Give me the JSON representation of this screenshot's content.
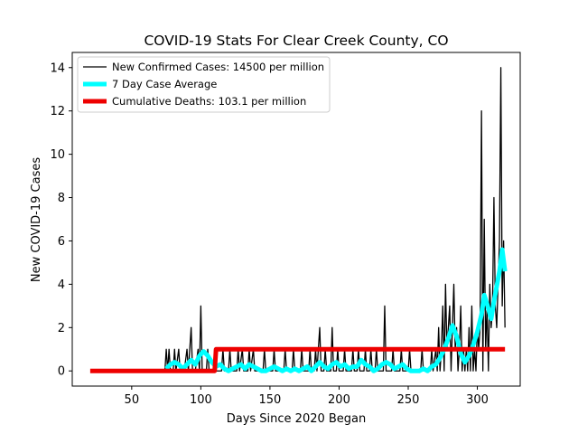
{
  "chart_data": {
    "type": "line",
    "title": "COVID-19 Stats For Clear Creek County, CO",
    "xlabel": "Days Since 2020 Began",
    "ylabel": "New COVID-19 Cases",
    "xlim": [
      7,
      331
    ],
    "ylim": [
      -0.7,
      14.7
    ],
    "xticks": [
      50,
      100,
      150,
      200,
      250,
      300
    ],
    "yticks": [
      0,
      2,
      4,
      6,
      8,
      10,
      12,
      14
    ],
    "grid": false,
    "legend_position": "top-left",
    "series": [
      {
        "name": "New Confirmed Cases: 14500 per million",
        "color": "#000000",
        "points": [
          [
            74,
            0
          ],
          [
            75,
            1
          ],
          [
            76,
            0
          ],
          [
            77,
            1
          ],
          [
            78,
            0
          ],
          [
            80,
            0
          ],
          [
            81,
            1
          ],
          [
            82,
            0
          ],
          [
            84,
            1
          ],
          [
            85,
            0
          ],
          [
            88,
            0
          ],
          [
            90,
            1
          ],
          [
            91,
            0
          ],
          [
            93,
            2
          ],
          [
            94,
            0
          ],
          [
            96,
            0
          ],
          [
            98,
            1
          ],
          [
            99,
            0
          ],
          [
            100,
            3
          ],
          [
            101,
            0
          ],
          [
            104,
            0
          ],
          [
            105,
            1
          ],
          [
            106,
            0
          ],
          [
            109,
            0
          ],
          [
            110,
            1
          ],
          [
            111,
            0
          ],
          [
            115,
            0
          ],
          [
            116,
            1
          ],
          [
            117,
            0
          ],
          [
            120,
            0
          ],
          [
            121,
            1
          ],
          [
            122,
            0
          ],
          [
            126,
            0
          ],
          [
            127,
            1
          ],
          [
            128,
            0
          ],
          [
            130,
            1
          ],
          [
            131,
            0
          ],
          [
            134,
            0
          ],
          [
            135,
            1
          ],
          [
            136,
            0
          ],
          [
            138,
            1
          ],
          [
            139,
            0
          ],
          [
            145,
            0
          ],
          [
            146,
            1
          ],
          [
            147,
            0
          ],
          [
            152,
            0
          ],
          [
            153,
            1
          ],
          [
            154,
            0
          ],
          [
            160,
            0
          ],
          [
            161,
            1
          ],
          [
            162,
            0
          ],
          [
            166,
            0
          ],
          [
            167,
            1
          ],
          [
            168,
            0
          ],
          [
            172,
            0
          ],
          [
            173,
            1
          ],
          [
            174,
            0
          ],
          [
            178,
            0
          ],
          [
            179,
            1
          ],
          [
            180,
            0
          ],
          [
            182,
            0
          ],
          [
            183,
            1
          ],
          [
            184,
            0
          ],
          [
            186,
            2
          ],
          [
            187,
            0
          ],
          [
            189,
            0
          ],
          [
            190,
            1
          ],
          [
            191,
            0
          ],
          [
            194,
            0
          ],
          [
            195,
            2
          ],
          [
            196,
            0
          ],
          [
            198,
            0
          ],
          [
            199,
            1
          ],
          [
            200,
            0
          ],
          [
            203,
            0
          ],
          [
            204,
            1
          ],
          [
            205,
            0
          ],
          [
            209,
            0
          ],
          [
            210,
            1
          ],
          [
            211,
            0
          ],
          [
            213,
            0
          ],
          [
            214,
            1
          ],
          [
            215,
            0
          ],
          [
            218,
            0
          ],
          [
            219,
            1
          ],
          [
            220,
            0
          ],
          [
            222,
            0
          ],
          [
            223,
            1
          ],
          [
            224,
            0
          ],
          [
            226,
            0
          ],
          [
            227,
            1
          ],
          [
            228,
            0
          ],
          [
            232,
            0
          ],
          [
            233,
            3
          ],
          [
            234,
            0
          ],
          [
            238,
            0
          ],
          [
            239,
            1
          ],
          [
            240,
            0
          ],
          [
            244,
            0
          ],
          [
            245,
            1
          ],
          [
            246,
            0
          ],
          [
            250,
            0
          ],
          [
            251,
            1
          ],
          [
            252,
            0
          ],
          [
            259,
            0
          ],
          [
            260,
            1
          ],
          [
            261,
            0
          ],
          [
            266,
            0
          ],
          [
            267,
            1
          ],
          [
            268,
            0
          ],
          [
            270,
            1
          ],
          [
            271,
            0
          ],
          [
            272,
            2
          ],
          [
            273,
            0
          ],
          [
            274,
            1
          ],
          [
            275,
            3
          ],
          [
            276,
            0
          ],
          [
            277,
            4
          ],
          [
            278,
            1
          ],
          [
            279,
            2
          ],
          [
            280,
            3
          ],
          [
            281,
            0
          ],
          [
            282,
            2
          ],
          [
            283,
            4
          ],
          [
            284,
            1
          ],
          [
            285,
            2
          ],
          [
            286,
            0
          ],
          [
            287,
            1
          ],
          [
            288,
            3
          ],
          [
            289,
            0
          ],
          [
            290,
            1
          ],
          [
            291,
            0
          ],
          [
            292,
            1
          ],
          [
            293,
            0
          ],
          [
            294,
            2
          ],
          [
            295,
            0
          ],
          [
            296,
            3
          ],
          [
            297,
            0
          ],
          [
            298,
            1
          ],
          [
            299,
            0
          ],
          [
            300,
            2
          ],
          [
            301,
            1
          ],
          [
            302,
            2
          ],
          [
            303,
            12
          ],
          [
            304,
            0
          ],
          [
            305,
            7
          ],
          [
            306,
            1
          ],
          [
            307,
            3
          ],
          [
            308,
            0
          ],
          [
            309,
            4
          ],
          [
            310,
            2
          ],
          [
            311,
            3
          ],
          [
            312,
            8
          ],
          [
            313,
            3
          ],
          [
            314,
            2
          ],
          [
            315,
            4
          ],
          [
            316,
            6
          ],
          [
            317,
            14
          ],
          [
            318,
            3
          ],
          [
            319,
            6
          ],
          [
            320,
            2
          ]
        ]
      },
      {
        "name": "7 Day Case Average",
        "color": "#00ffff",
        "points": [
          [
            75,
            0.1
          ],
          [
            78,
            0.3
          ],
          [
            81,
            0.4
          ],
          [
            84,
            0.3
          ],
          [
            87,
            0.1
          ],
          [
            90,
            0.3
          ],
          [
            93,
            0.5
          ],
          [
            96,
            0.3
          ],
          [
            99,
            0.7
          ],
          [
            102,
            0.9
          ],
          [
            105,
            0.7
          ],
          [
            108,
            0.4
          ],
          [
            111,
            0.2
          ],
          [
            114,
            0.3
          ],
          [
            117,
            0.1
          ],
          [
            120,
            0.0
          ],
          [
            123,
            0.1
          ],
          [
            126,
            0.2
          ],
          [
            129,
            0.3
          ],
          [
            132,
            0.1
          ],
          [
            135,
            0.3
          ],
          [
            138,
            0.2
          ],
          [
            141,
            0.1
          ],
          [
            144,
            0.0
          ],
          [
            147,
            0.0
          ],
          [
            150,
            0.1
          ],
          [
            153,
            0.2
          ],
          [
            156,
            0.1
          ],
          [
            159,
            0.0
          ],
          [
            162,
            0.1
          ],
          [
            165,
            0.0
          ],
          [
            168,
            0.1
          ],
          [
            171,
            0.0
          ],
          [
            174,
            0.1
          ],
          [
            177,
            0.2
          ],
          [
            180,
            0.0
          ],
          [
            183,
            0.2
          ],
          [
            186,
            0.4
          ],
          [
            189,
            0.2
          ],
          [
            192,
            0.1
          ],
          [
            195,
            0.3
          ],
          [
            198,
            0.4
          ],
          [
            201,
            0.2
          ],
          [
            204,
            0.3
          ],
          [
            207,
            0.1
          ],
          [
            210,
            0.2
          ],
          [
            213,
            0.2
          ],
          [
            216,
            0.5
          ],
          [
            219,
            0.3
          ],
          [
            222,
            0.2
          ],
          [
            225,
            0.0
          ],
          [
            228,
            0.1
          ],
          [
            231,
            0.3
          ],
          [
            234,
            0.4
          ],
          [
            237,
            0.3
          ],
          [
            240,
            0.1
          ],
          [
            243,
            0.2
          ],
          [
            246,
            0.3
          ],
          [
            249,
            0.1
          ],
          [
            252,
            0.0
          ],
          [
            255,
            0.0
          ],
          [
            258,
            0.0
          ],
          [
            261,
            0.1
          ],
          [
            264,
            0.0
          ],
          [
            267,
            0.2
          ],
          [
            270,
            0.3
          ],
          [
            273,
            0.6
          ],
          [
            276,
            1.0
          ],
          [
            279,
            1.5
          ],
          [
            282,
            2.1
          ],
          [
            285,
            1.6
          ],
          [
            288,
            0.8
          ],
          [
            291,
            0.4
          ],
          [
            294,
            0.7
          ],
          [
            297,
            1.2
          ],
          [
            300,
            1.8
          ],
          [
            303,
            2.6
          ],
          [
            305,
            3.5
          ],
          [
            307,
            3.1
          ],
          [
            310,
            2.4
          ],
          [
            312,
            3.2
          ],
          [
            314,
            3.9
          ],
          [
            316,
            4.6
          ],
          [
            318,
            5.6
          ],
          [
            320,
            4.6
          ]
        ]
      },
      {
        "name": "Cumulative Deaths: 103.1 per million",
        "color": "#ee0000",
        "points": [
          [
            20,
            0
          ],
          [
            110,
            0
          ],
          [
            111,
            1
          ],
          [
            320,
            1
          ]
        ]
      }
    ]
  }
}
